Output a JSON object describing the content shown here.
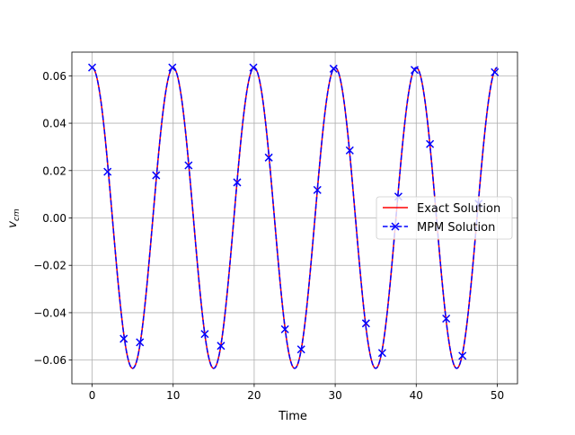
{
  "chart_data": {
    "type": "line",
    "xlabel": "Time",
    "ylabel": "v",
    "ylabel_sub": "cm",
    "xlim": [
      -2.5,
      52.5
    ],
    "ylim": [
      -0.07,
      0.07
    ],
    "xticks": [
      0,
      10,
      20,
      30,
      40,
      50
    ],
    "xtick_labels": [
      "0",
      "10",
      "20",
      "30",
      "40",
      "50"
    ],
    "yticks": [
      -0.06,
      -0.04,
      -0.02,
      0.0,
      0.02,
      0.04,
      0.06
    ],
    "ytick_labels": [
      "−0.06",
      "−0.04",
      "−0.02",
      "0.00",
      "0.02",
      "0.04",
      "0.06"
    ],
    "grid": true,
    "legend_position": "center-right",
    "series": [
      {
        "name": "Exact Solution",
        "color": "#ff0000",
        "style": "solid",
        "function": "0.0635*cos(2*pi*t/10)",
        "amplitude": 0.0635,
        "period": 10,
        "t_range": [
          0,
          50
        ]
      },
      {
        "name": "MPM Solution",
        "color": "#0000ff",
        "style": "dashed",
        "marker": "x",
        "markers": [
          {
            "x": 0.0,
            "y": 0.0635
          },
          {
            "x": 1.9,
            "y": 0.0195
          },
          {
            "x": 3.9,
            "y": -0.051
          },
          {
            "x": 5.9,
            "y": -0.0525
          },
          {
            "x": 7.9,
            "y": 0.018
          },
          {
            "x": 9.9,
            "y": 0.0635
          },
          {
            "x": 11.9,
            "y": 0.0222
          },
          {
            "x": 13.9,
            "y": -0.049
          },
          {
            "x": 15.9,
            "y": -0.054
          },
          {
            "x": 17.9,
            "y": 0.015
          },
          {
            "x": 19.9,
            "y": 0.0635
          },
          {
            "x": 21.8,
            "y": 0.0255
          },
          {
            "x": 23.8,
            "y": -0.047
          },
          {
            "x": 25.8,
            "y": -0.0555
          },
          {
            "x": 27.8,
            "y": 0.0118
          },
          {
            "x": 29.8,
            "y": 0.063
          },
          {
            "x": 31.8,
            "y": 0.0285
          },
          {
            "x": 33.8,
            "y": -0.0445
          },
          {
            "x": 35.8,
            "y": -0.057
          },
          {
            "x": 37.8,
            "y": 0.009
          },
          {
            "x": 39.8,
            "y": 0.0625
          },
          {
            "x": 41.7,
            "y": 0.0312
          },
          {
            "x": 43.7,
            "y": -0.0425
          },
          {
            "x": 45.7,
            "y": -0.0582
          },
          {
            "x": 47.7,
            "y": 0.006
          },
          {
            "x": 49.7,
            "y": 0.0615
          }
        ]
      }
    ]
  }
}
